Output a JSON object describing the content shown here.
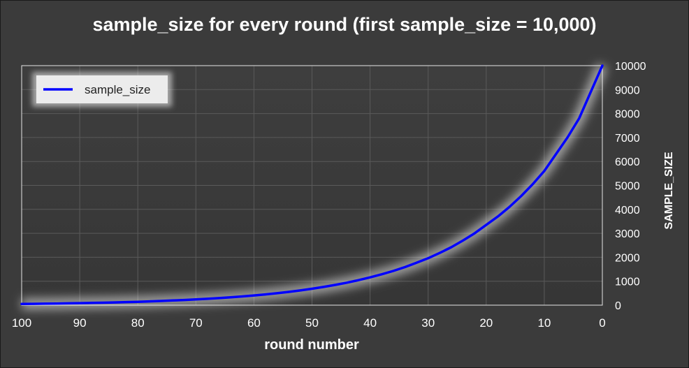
{
  "chart_data": {
    "type": "line",
    "title": "sample_size for every round (first sample_size = 10,000)",
    "xlabel": "round number",
    "ylabel": "SAMPLE_SIZE",
    "xlim": [
      100,
      0
    ],
    "ylim": [
      0,
      10000
    ],
    "x_ticks": [
      "100",
      "90",
      "80",
      "70",
      "60",
      "50",
      "40",
      "30",
      "20",
      "10",
      "0"
    ],
    "y_ticks": [
      "0",
      "1000",
      "2000",
      "3000",
      "4000",
      "5000",
      "6000",
      "7000",
      "8000",
      "9000",
      "10000"
    ],
    "grid": true,
    "legend": "top-left",
    "line_color": "#0000ff",
    "series": [
      {
        "name": "sample_size",
        "x": [
          0,
          2,
          4,
          6,
          8,
          10,
          12,
          14,
          16,
          18,
          20,
          22,
          24,
          26,
          28,
          30,
          32,
          34,
          36,
          38,
          40,
          42,
          44,
          46,
          48,
          50,
          52,
          54,
          56,
          58,
          60,
          62,
          64,
          66,
          68,
          70,
          72,
          74,
          76,
          78,
          80,
          82,
          84,
          86,
          88,
          90,
          92,
          94,
          96,
          98,
          100
        ],
        "values": [
          10000,
          8900,
          7800,
          7000,
          6300,
          5600,
          5050,
          4550,
          4100,
          3700,
          3350,
          3000,
          2700,
          2420,
          2180,
          1960,
          1770,
          1590,
          1430,
          1290,
          1160,
          1045,
          940,
          845,
          760,
          685,
          616,
          555,
          500,
          450,
          405,
          365,
          328,
          295,
          266,
          239,
          215,
          194,
          175,
          157,
          141,
          127,
          114,
          103,
          93,
          84,
          75,
          68,
          61,
          55,
          50
        ]
      }
    ]
  }
}
